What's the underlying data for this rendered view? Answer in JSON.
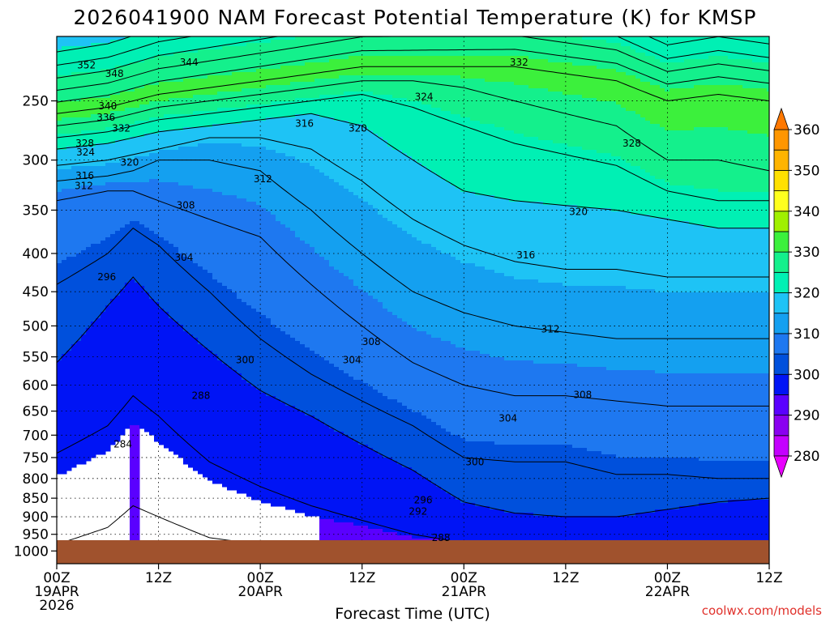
{
  "chart_data": {
    "type": "heatmap",
    "title": "2026041900 NAM Forecast Potential Temperature (K) for KMSP",
    "xlabel": "Forecast Time (UTC)",
    "ylabel": "",
    "credit": "coolwx.com/models",
    "y_ticks": [
      "250",
      "300",
      "350",
      "400",
      "450",
      "500",
      "550",
      "600",
      "650",
      "700",
      "750",
      "800",
      "850",
      "900",
      "950",
      "1000"
    ],
    "y_tick_values": [
      250,
      300,
      350,
      400,
      450,
      500,
      550,
      600,
      650,
      700,
      750,
      800,
      850,
      900,
      950,
      1000
    ],
    "y_scale": "log-pressure (hPa, inverted)",
    "x_ticks": [
      {
        "hour": 0,
        "lines": [
          "00Z",
          "19APR",
          "2026"
        ]
      },
      {
        "hour": 12,
        "lines": [
          "12Z"
        ]
      },
      {
        "hour": 24,
        "lines": [
          "00Z",
          "20APR"
        ]
      },
      {
        "hour": 36,
        "lines": [
          "12Z"
        ]
      },
      {
        "hour": 48,
        "lines": [
          "00Z",
          "21APR"
        ]
      },
      {
        "hour": 60,
        "lines": [
          "12Z"
        ]
      },
      {
        "hour": 72,
        "lines": [
          "00Z",
          "22APR"
        ]
      },
      {
        "hour": 84,
        "lines": [
          "12Z"
        ]
      }
    ],
    "xlim_hours": [
      0,
      84
    ],
    "grid": true,
    "colorbar": {
      "ticks": [
        "280",
        "290",
        "300",
        "310",
        "320",
        "330",
        "340",
        "350",
        "360"
      ],
      "bands": [
        {
          "min": 270,
          "max": 280,
          "color": "#e800ff"
        },
        {
          "min": 280,
          "max": 285,
          "color": "#c400ff"
        },
        {
          "min": 285,
          "max": 290,
          "color": "#8a00f0"
        },
        {
          "min": 290,
          "max": 295,
          "color": "#5a00ff"
        },
        {
          "min": 295,
          "max": 300,
          "color": "#0014f5"
        },
        {
          "min": 300,
          "max": 305,
          "color": "#0050dc"
        },
        {
          "min": 305,
          "max": 310,
          "color": "#1e78f0"
        },
        {
          "min": 310,
          "max": 315,
          "color": "#14a0f0"
        },
        {
          "min": 315,
          "max": 320,
          "color": "#1ec3f5"
        },
        {
          "min": 320,
          "max": 325,
          "color": "#00f0b4"
        },
        {
          "min": 325,
          "max": 330,
          "color": "#14f08c"
        },
        {
          "min": 330,
          "max": 335,
          "color": "#3cf03c"
        },
        {
          "min": 335,
          "max": 340,
          "color": "#a0f000"
        },
        {
          "min": 340,
          "max": 345,
          "color": "#ffff1e"
        },
        {
          "min": 345,
          "max": 350,
          "color": "#ffe000"
        },
        {
          "min": 350,
          "max": 355,
          "color": "#ffb400"
        },
        {
          "min": 355,
          "max": 360,
          "color": "#ff9600"
        },
        {
          "min": 360,
          "max": 370,
          "color": "#ff7800"
        }
      ]
    },
    "isentropes_K": [
      284,
      288,
      292,
      296,
      300,
      304,
      308,
      312,
      316,
      320,
      324,
      328,
      332,
      336,
      340,
      344,
      348,
      352
    ],
    "isentrope_levels_hPa_at_hours": {
      "hours": [
        0,
        6,
        9,
        12,
        18,
        24,
        30,
        36,
        42,
        48,
        54,
        60,
        66,
        72,
        78,
        84
      ],
      "292": [
        980,
        930,
        870,
        900,
        960,
        980,
        980,
        980,
        980,
        980,
        980,
        980,
        980,
        980,
        980,
        980
      ],
      "296": [
        740,
        680,
        620,
        660,
        760,
        820,
        870,
        910,
        950,
        975,
        975,
        975,
        975,
        975,
        975,
        975
      ],
      "300": [
        560,
        470,
        430,
        470,
        540,
        610,
        660,
        720,
        780,
        860,
        890,
        900,
        900,
        880,
        860,
        850
      ],
      "304": [
        440,
        400,
        370,
        390,
        450,
        520,
        580,
        630,
        680,
        750,
        760,
        760,
        790,
        790,
        800,
        800
      ],
      "308": [
        340,
        330,
        330,
        340,
        360,
        380,
        440,
        500,
        560,
        600,
        620,
        620,
        630,
        640,
        640,
        640
      ],
      "312": [
        320,
        315,
        310,
        300,
        300,
        310,
        350,
        400,
        450,
        480,
        500,
        510,
        520,
        520,
        520,
        520
      ],
      "316": [
        305,
        300,
        295,
        290,
        280,
        280,
        290,
        320,
        360,
        390,
        410,
        420,
        420,
        430,
        430,
        430
      ],
      "320": [
        290,
        285,
        280,
        275,
        270,
        265,
        260,
        270,
        300,
        330,
        340,
        345,
        350,
        360,
        370,
        370
      ],
      "324": [
        280,
        275,
        270,
        265,
        260,
        255,
        250,
        245,
        255,
        270,
        285,
        295,
        305,
        330,
        340,
        340
      ],
      "328": [
        270,
        265,
        260,
        255,
        250,
        245,
        240,
        235,
        235,
        240,
        250,
        260,
        270,
        300,
        300,
        310
      ],
      "332": [
        260,
        255,
        250,
        245,
        240,
        235,
        230,
        225,
        225,
        225,
        225,
        230,
        235,
        250,
        245,
        250
      ]
    },
    "contour_labels": [
      {
        "text": "352",
        "t": 3.5,
        "p": 224
      },
      {
        "text": "348",
        "t": 6.8,
        "p": 230
      },
      {
        "text": "344",
        "t": 15.6,
        "p": 222
      },
      {
        "text": "340",
        "t": 6.0,
        "p": 254
      },
      {
        "text": "336",
        "t": 5.8,
        "p": 263
      },
      {
        "text": "332",
        "t": 7.6,
        "p": 272
      },
      {
        "text": "328",
        "t": 3.3,
        "p": 285
      },
      {
        "text": "324",
        "t": 3.4,
        "p": 293
      },
      {
        "text": "320",
        "t": 8.6,
        "p": 302
      },
      {
        "text": "316",
        "t": 3.3,
        "p": 315
      },
      {
        "text": "312",
        "t": 3.2,
        "p": 325
      },
      {
        "text": "308",
        "t": 15.2,
        "p": 345
      },
      {
        "text": "312",
        "t": 24.3,
        "p": 318
      },
      {
        "text": "316",
        "t": 29.2,
        "p": 268
      },
      {
        "text": "320",
        "t": 35.5,
        "p": 272
      },
      {
        "text": "324",
        "t": 43.3,
        "p": 247
      },
      {
        "text": "332",
        "t": 54.5,
        "p": 222
      },
      {
        "text": "328",
        "t": 67.8,
        "p": 285
      },
      {
        "text": "320",
        "t": 61.5,
        "p": 352
      },
      {
        "text": "316",
        "t": 55.3,
        "p": 402
      },
      {
        "text": "304",
        "t": 15.0,
        "p": 405
      },
      {
        "text": "296",
        "t": 5.9,
        "p": 430
      },
      {
        "text": "300",
        "t": 22.2,
        "p": 555
      },
      {
        "text": "304",
        "t": 34.8,
        "p": 555
      },
      {
        "text": "308",
        "t": 37.1,
        "p": 525
      },
      {
        "text": "312",
        "t": 58.2,
        "p": 505
      },
      {
        "text": "308",
        "t": 62.0,
        "p": 618
      },
      {
        "text": "304",
        "t": 53.2,
        "p": 665
      },
      {
        "text": "300",
        "t": 49.3,
        "p": 760
      },
      {
        "text": "296",
        "t": 43.2,
        "p": 855
      },
      {
        "text": "292",
        "t": 42.6,
        "p": 885
      },
      {
        "text": "288",
        "t": 17.0,
        "p": 620
      },
      {
        "text": "288",
        "t": 45.3,
        "p": 960
      },
      {
        "text": "284",
        "t": 7.8,
        "p": 720
      }
    ]
  }
}
